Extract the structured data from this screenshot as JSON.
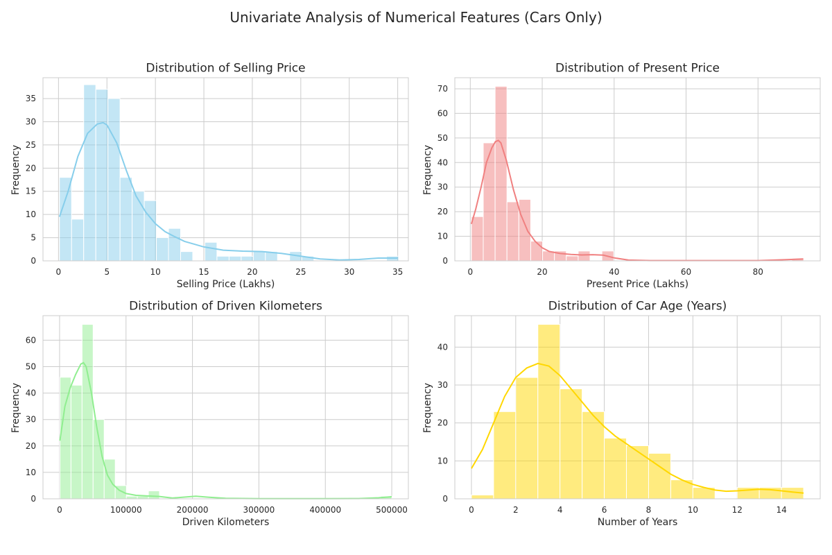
{
  "figure": {
    "title": "Univariate Analysis of Numerical Features (Cars Only)"
  },
  "chart_data": [
    {
      "type": "bar",
      "title": "Distribution of Selling Price",
      "xlabel": "Selling Price (Lakhs)",
      "ylabel": "Frequency",
      "color": "#87ceeb",
      "grid": true,
      "xlim": [
        -1.6,
        36.1
      ],
      "ylim": [
        0,
        39.5
      ],
      "xticks": [
        0,
        5,
        10,
        15,
        20,
        25,
        30,
        35
      ],
      "yticks": [
        0,
        5,
        10,
        15,
        20,
        25,
        30,
        35
      ],
      "bin_start": 0.1,
      "bin_width": 1.25,
      "values": [
        18,
        9,
        38,
        37,
        35,
        18,
        15,
        13,
        5,
        7,
        2,
        0,
        4,
        1,
        1,
        1,
        2,
        2,
        0,
        2,
        1,
        0,
        0,
        0,
        0,
        0,
        0,
        1
      ],
      "kde": {
        "x": [
          0.1,
          1,
          2,
          3,
          4,
          4.6,
          5,
          6,
          7,
          8,
          9,
          10,
          11,
          12,
          13,
          14,
          15,
          17,
          19,
          21,
          23,
          25,
          27,
          29,
          31,
          33,
          35
        ],
        "y": [
          9.5,
          15,
          22.5,
          27.5,
          29.5,
          29.8,
          29.3,
          25.5,
          19.5,
          14,
          10.5,
          8,
          6.3,
          5.2,
          4.2,
          3.6,
          3,
          2.3,
          2.1,
          2,
          1.6,
          1,
          0.4,
          0.2,
          0.3,
          0.6,
          0.6
        ]
      }
    },
    {
      "type": "bar",
      "title": "Distribution of Present Price",
      "xlabel": "Present Price (Lakhs)",
      "ylabel": "Frequency",
      "color": "#f08080",
      "grid": true,
      "xlim": [
        -4.3,
        97.3
      ],
      "ylim": [
        0,
        74.5
      ],
      "xticks": [
        0,
        20,
        40,
        60,
        80
      ],
      "yticks": [
        0,
        10,
        20,
        30,
        40,
        50,
        60,
        70
      ],
      "bin_start": 0.3,
      "bin_width": 3.3,
      "values": [
        18,
        48,
        71,
        24,
        25,
        8,
        4,
        4,
        2,
        4,
        0,
        4,
        0,
        0,
        0,
        0,
        0,
        0,
        0,
        0,
        0,
        0,
        0,
        0,
        0,
        0,
        0,
        1
      ],
      "kde": {
        "x": [
          0.3,
          1.5,
          3,
          4.5,
          6,
          7,
          7.8,
          8.5,
          10,
          12,
          14,
          16,
          18,
          20,
          22,
          25,
          28,
          31,
          34,
          37,
          40,
          44,
          50,
          60,
          70,
          80,
          88,
          92.6
        ],
        "y": [
          15,
          21,
          30,
          40,
          46,
          48.5,
          49,
          48,
          41,
          29,
          19,
          12,
          8,
          5.3,
          3.8,
          3,
          2.6,
          2.4,
          2.5,
          2.3,
          1.2,
          0.3,
          0.1,
          0.1,
          0.1,
          0.1,
          0.5,
          0.8
        ]
      }
    },
    {
      "type": "bar",
      "title": "Distribution of Driven Kilometers",
      "xlabel": "Driven Kilometers",
      "ylabel": "Frequency",
      "color": "#90ee90",
      "grid": true,
      "xlim": [
        -25000,
        525000
      ],
      "ylim": [
        0,
        69.3
      ],
      "xticks": [
        0,
        100000,
        200000,
        300000,
        400000,
        500000
      ],
      "yticks": [
        0,
        10,
        20,
        30,
        40,
        50,
        60
      ],
      "bin_start": 500,
      "bin_width": 16650,
      "values": [
        46,
        43,
        66,
        30,
        15,
        5,
        1,
        1,
        3,
        0,
        0,
        0,
        0,
        0,
        0,
        0,
        0,
        0,
        0,
        0,
        0,
        0,
        0,
        0,
        0,
        0,
        0,
        0,
        0,
        1
      ],
      "kde": {
        "x": [
          500,
          8000,
          16000,
          24000,
          32000,
          36000,
          40000,
          48000,
          56000,
          64000,
          72000,
          80000,
          90000,
          100000,
          115000,
          130000,
          150000,
          170000,
          185000,
          205000,
          225000,
          250000,
          300000,
          350000,
          400000,
          450000,
          480000,
          500000
        ],
        "y": [
          22,
          35,
          42,
          47,
          51,
          51.5,
          50,
          40,
          27,
          16,
          9,
          5.5,
          3.2,
          2,
          1.3,
          1.1,
          0.9,
          0.3,
          0.6,
          1,
          0.6,
          0.2,
          0.05,
          0.05,
          0.05,
          0.1,
          0.4,
          0.8
        ]
      }
    },
    {
      "type": "bar",
      "title": "Distribution of Car Age (Years)",
      "xlabel": "Number of Years",
      "ylabel": "Frequency",
      "color": "#ffd700",
      "grid": true,
      "xlim": [
        -0.75,
        15.75
      ],
      "ylim": [
        0,
        48.3
      ],
      "xticks": [
        0,
        2,
        4,
        6,
        8,
        10,
        12,
        14
      ],
      "yticks": [
        0,
        10,
        20,
        30,
        40
      ],
      "bin_start": 0,
      "bin_width": 1,
      "values": [
        1,
        23,
        32,
        46,
        29,
        23,
        16,
        14,
        12,
        5,
        3,
        0,
        3,
        3,
        3
      ],
      "kde": {
        "x": [
          0,
          0.5,
          1,
          1.5,
          2,
          2.5,
          3,
          3.5,
          4,
          4.5,
          5,
          5.5,
          6,
          6.5,
          7,
          7.5,
          8,
          8.5,
          9,
          9.5,
          10,
          10.5,
          11,
          11.5,
          12,
          12.5,
          13,
          13.5,
          14,
          14.5,
          15
        ],
        "y": [
          8,
          13,
          20,
          27,
          32,
          34.5,
          35.7,
          35,
          32.5,
          29,
          25.5,
          22,
          19,
          16.5,
          14.5,
          12.5,
          10.5,
          8.5,
          6.5,
          5,
          3.8,
          3,
          2.3,
          2,
          2.1,
          2.3,
          2.5,
          2.4,
          2.1,
          1.8,
          1.5
        ]
      }
    }
  ]
}
